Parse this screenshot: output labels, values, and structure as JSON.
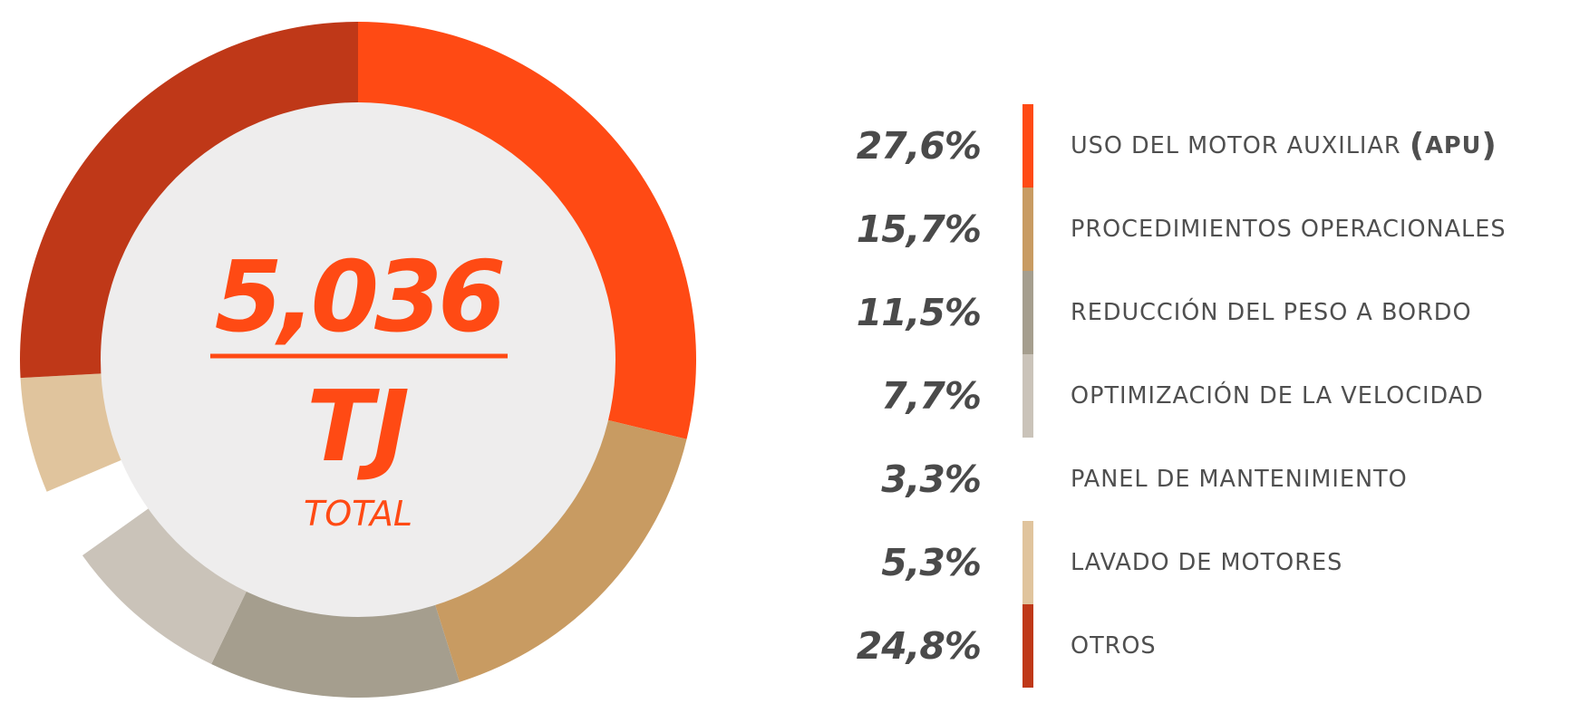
{
  "chart_data": {
    "type": "pie",
    "center": {
      "value": "5,036",
      "unit": "TJ",
      "caption": "TOTAL"
    },
    "slices": [
      {
        "label": "USO DEL MOTOR AUXILIAR",
        "label_abbr": "APU",
        "pct_label": "27,6%",
        "value": 27.6,
        "color": "#FF4A14",
        "show_swatch": true
      },
      {
        "label": "PROCEDIMIENTOS OPERACIONALES",
        "pct_label": "15,7%",
        "value": 15.7,
        "color": "#C89B62",
        "show_swatch": true
      },
      {
        "label": "REDUCCIÓN DEL PESO A BORDO",
        "pct_label": "11,5%",
        "value": 11.5,
        "color": "#A59E8E",
        "show_swatch": true
      },
      {
        "label": "OPTIMIZACIÓN DE LA VELOCIDAD",
        "pct_label": "7,7%",
        "value": 7.7,
        "color": "#CAC3B9",
        "show_swatch": true
      },
      {
        "label": "PANEL DE MANTENIMIENTO",
        "pct_label": "3,3%",
        "value": 3.3,
        "color": "#FFFFFF",
        "show_swatch": false
      },
      {
        "label": "LAVADO DE MOTORES",
        "pct_label": "5,3%",
        "value": 5.3,
        "color": "#E0C49D",
        "show_swatch": true
      },
      {
        "label": "OTROS",
        "pct_label": "24,8%",
        "value": 24.8,
        "color": "#BF3818",
        "show_swatch": true
      }
    ]
  },
  "colors": {
    "accent": "#FF4A14",
    "center_fill": "#EEEDED",
    "text": "#4A4A4A"
  }
}
